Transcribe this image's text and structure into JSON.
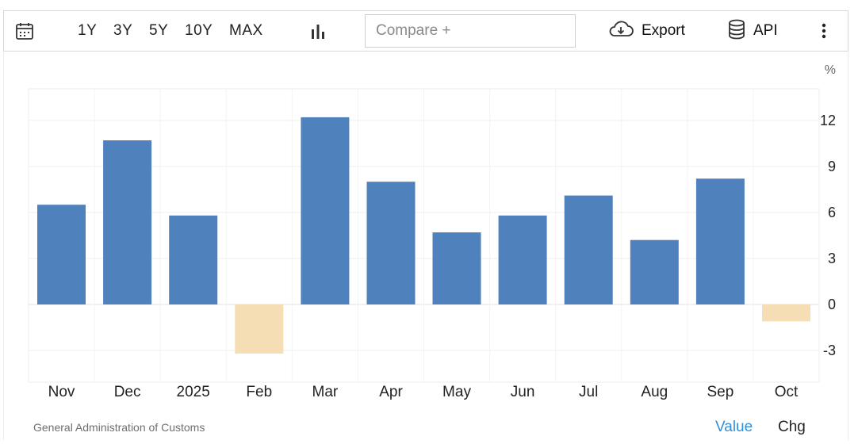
{
  "toolbar": {
    "calendar_icon": "calendar-icon",
    "ranges": [
      "1Y",
      "3Y",
      "5Y",
      "10Y",
      "MAX"
    ],
    "chart_type_icon": "bar-chart-icon",
    "compare_placeholder": "Compare +",
    "export_label": "Export",
    "export_icon": "cloud-download-icon",
    "api_label": "API",
    "api_icon": "database-icon",
    "more_icon": "vertical-dots-icon"
  },
  "chart_data": {
    "type": "bar",
    "categories": [
      "Nov",
      "Dec",
      "2025",
      "Feb",
      "Mar",
      "Apr",
      "May",
      "Jun",
      "Jul",
      "Aug",
      "Sep",
      "Oct"
    ],
    "values": [
      6.5,
      10.7,
      5.8,
      -3.2,
      12.2,
      8.0,
      4.7,
      5.8,
      7.1,
      4.2,
      8.2,
      -1.1
    ],
    "unit_label": "%",
    "yticks": [
      -3,
      0,
      3,
      6,
      9,
      12
    ],
    "ylim": [
      -5,
      14
    ],
    "y_axis_position": "right",
    "grid": true,
    "colors": {
      "positive": "#4f81bd",
      "negative": "#f5deb3"
    }
  },
  "footer": {
    "source": "General Administration of Customs",
    "tab_value": "Value",
    "tab_chg": "Chg"
  }
}
